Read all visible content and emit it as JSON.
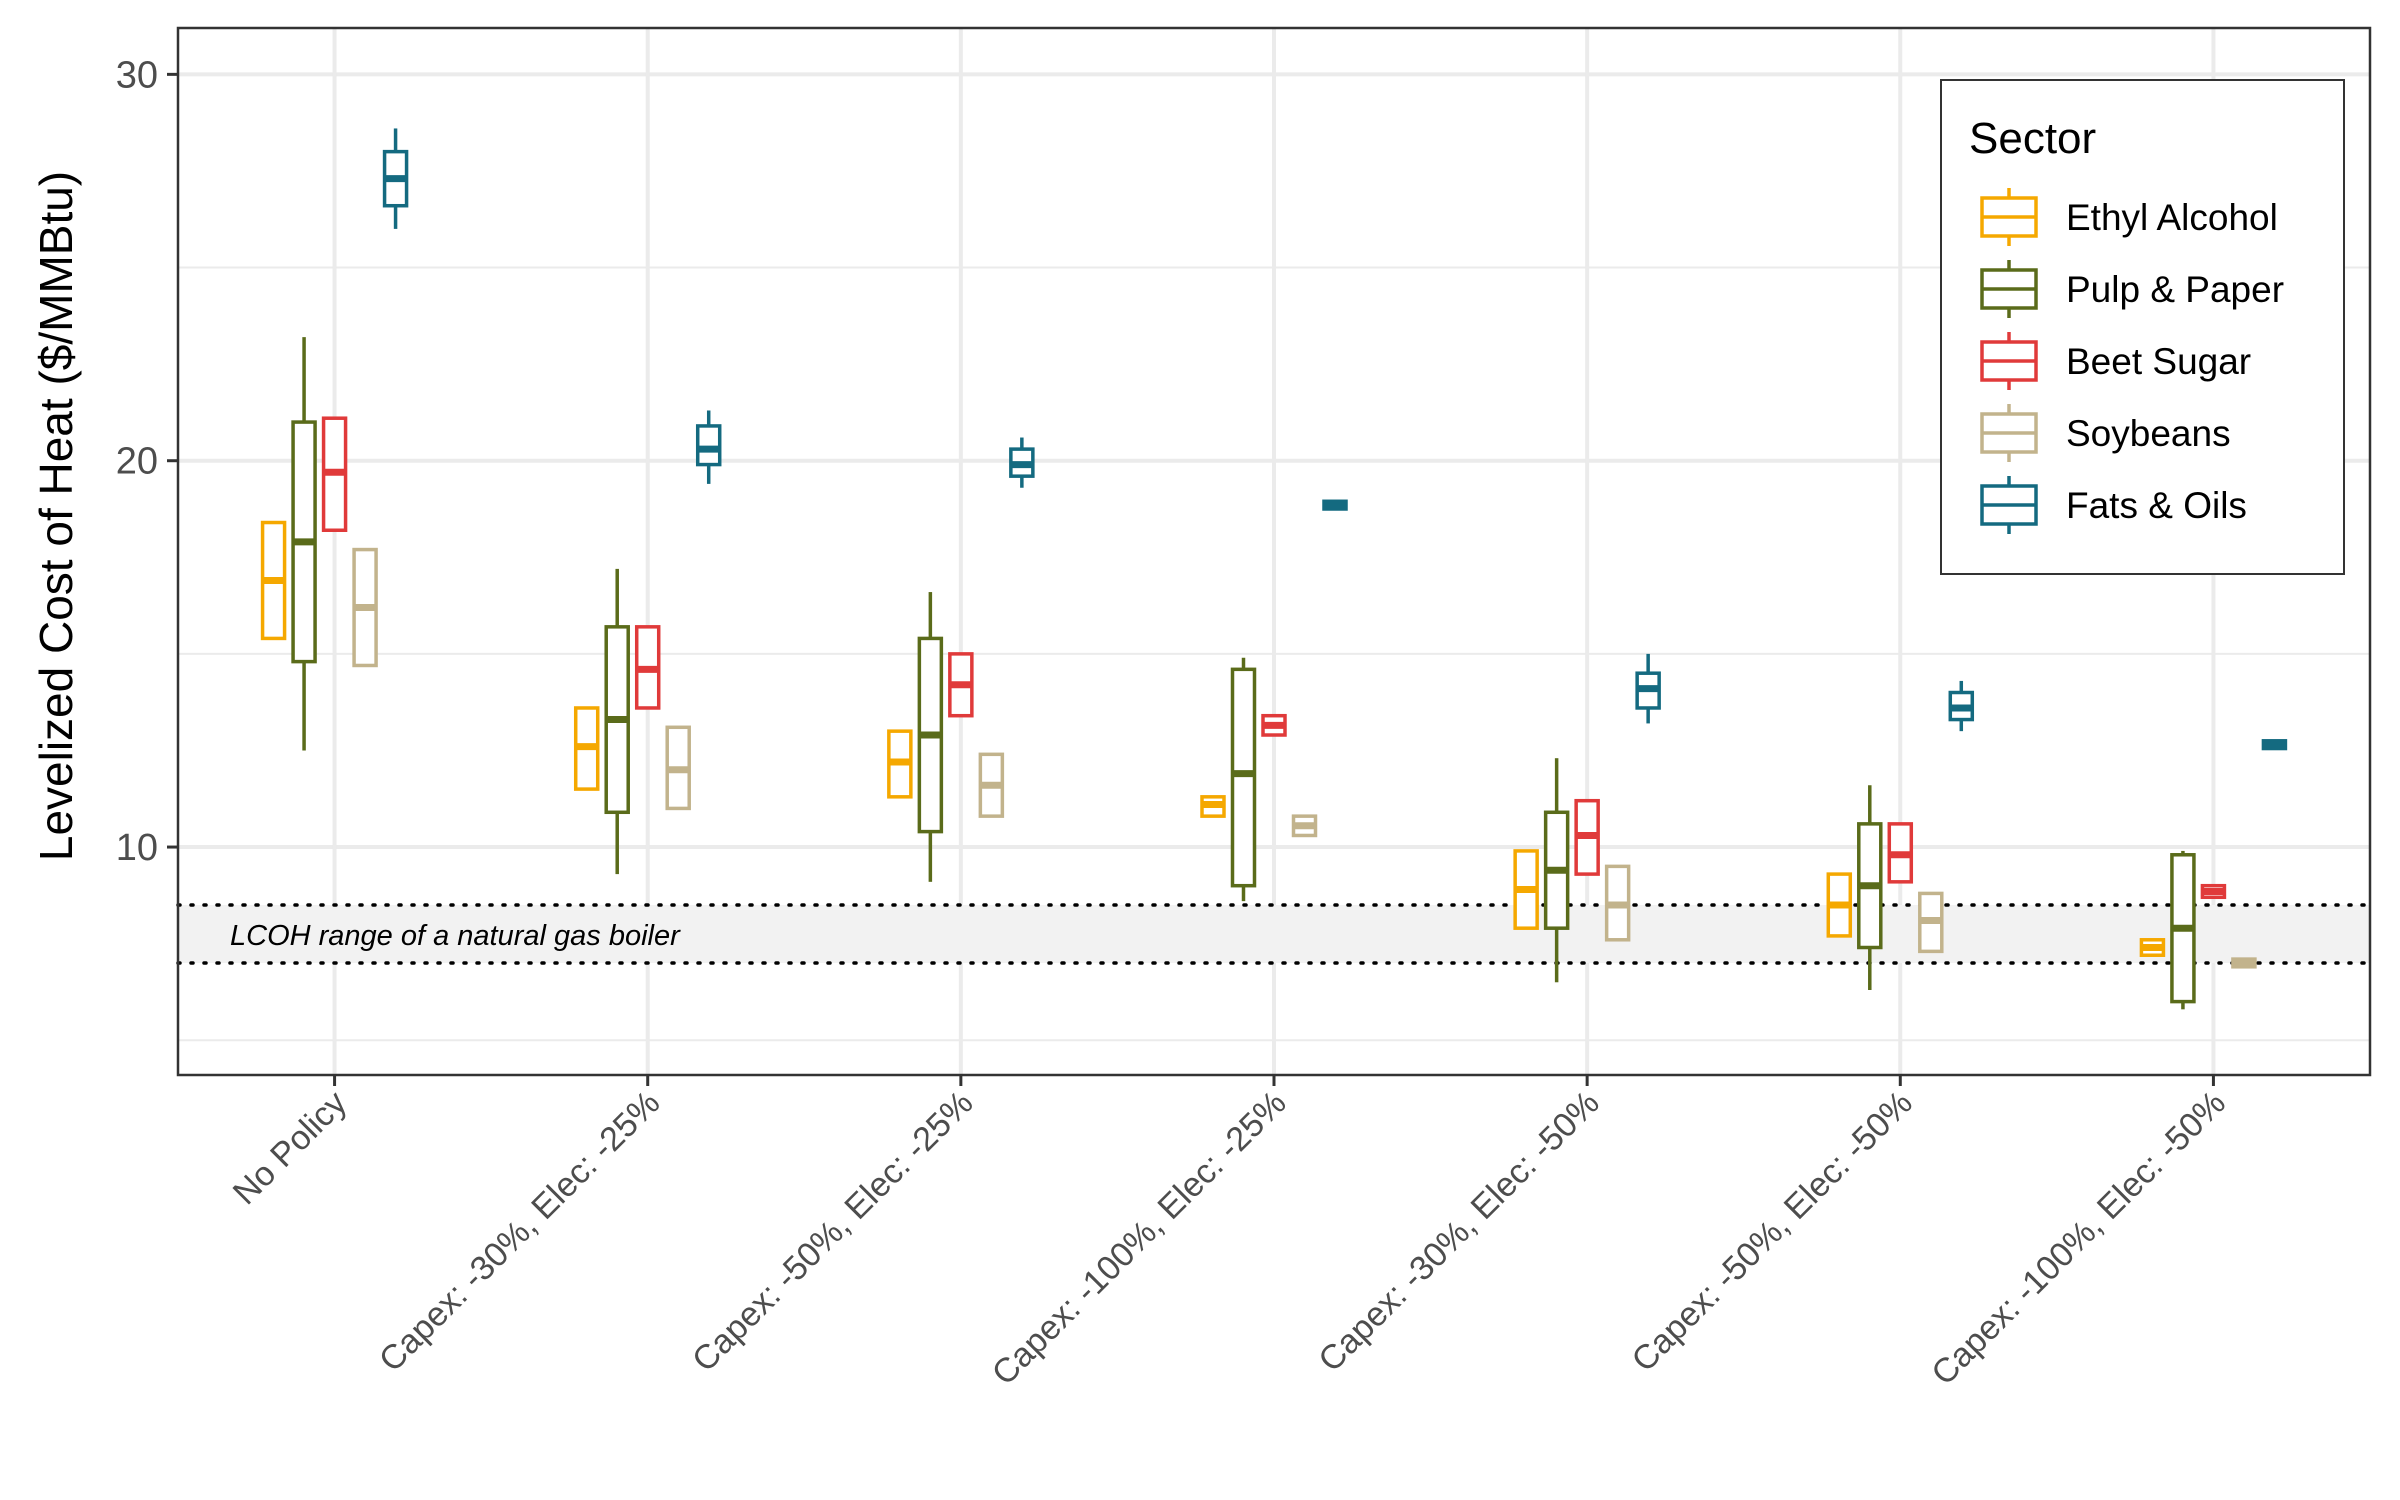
{
  "chart_data": {
    "type": "boxplot",
    "title": "",
    "xlabel": "",
    "ylabel": "Levelized Cost of Heat ($/MMBtu)",
    "ylim": [
      4.1,
      31.2
    ],
    "yticks": [
      10,
      20,
      30
    ],
    "grid": true,
    "legend_position": "top-right",
    "legend_title": "Sector",
    "categories": [
      "No Policy",
      "Capex: -30%, Elec: -25%",
      "Capex: -50%, Elec: -25%",
      "Capex: -100%, Elec: -25%",
      "Capex: -30%, Elec: -50%",
      "Capex: -50%, Elec: -50%",
      "Capex: -100%, Elec: -50%"
    ],
    "reference_band": {
      "label": "LCOH range of a natural gas boiler",
      "low": 7.0,
      "high": 8.5
    },
    "series": [
      {
        "name": "Ethyl Alcohol",
        "color": "#F5A800",
        "boxes": [
          {
            "min": 15.4,
            "q1": 15.4,
            "median": 16.9,
            "q3": 18.4,
            "max": 18.4
          },
          {
            "min": 11.5,
            "q1": 11.5,
            "median": 12.6,
            "q3": 13.6,
            "max": 13.6
          },
          {
            "min": 11.3,
            "q1": 11.3,
            "median": 12.2,
            "q3": 13.0,
            "max": 13.0
          },
          {
            "min": 10.8,
            "q1": 10.8,
            "median": 11.1,
            "q3": 11.3,
            "max": 11.3
          },
          {
            "min": 7.9,
            "q1": 7.9,
            "median": 8.9,
            "q3": 9.9,
            "max": 9.9
          },
          {
            "min": 7.7,
            "q1": 7.7,
            "median": 8.5,
            "q3": 9.3,
            "max": 9.3
          },
          {
            "min": 7.2,
            "q1": 7.2,
            "median": 7.4,
            "q3": 7.6,
            "max": 7.6
          }
        ]
      },
      {
        "name": "Pulp & Paper",
        "color": "#5A6B1A",
        "boxes": [
          {
            "min": 12.5,
            "q1": 14.8,
            "median": 17.9,
            "q3": 21.0,
            "max": 23.2
          },
          {
            "min": 9.3,
            "q1": 10.9,
            "median": 13.3,
            "q3": 15.7,
            "max": 17.2
          },
          {
            "min": 9.1,
            "q1": 10.4,
            "median": 12.9,
            "q3": 15.4,
            "max": 16.6
          },
          {
            "min": 8.6,
            "q1": 9.0,
            "median": 11.9,
            "q3": 14.6,
            "max": 14.9
          },
          {
            "min": 6.5,
            "q1": 7.9,
            "median": 9.4,
            "q3": 10.9,
            "max": 12.3
          },
          {
            "min": 6.3,
            "q1": 7.4,
            "median": 9.0,
            "q3": 10.6,
            "max": 11.6
          },
          {
            "min": 5.8,
            "q1": 6.0,
            "median": 7.9,
            "q3": 9.8,
            "max": 9.9
          }
        ]
      },
      {
        "name": "Beet Sugar",
        "color": "#E03A3A",
        "boxes": [
          {
            "min": 18.2,
            "q1": 18.2,
            "median": 19.7,
            "q3": 21.1,
            "max": 21.1
          },
          {
            "min": 13.6,
            "q1": 13.6,
            "median": 14.6,
            "q3": 15.7,
            "max": 15.7
          },
          {
            "min": 13.4,
            "q1": 13.4,
            "median": 14.2,
            "q3": 15.0,
            "max": 15.0
          },
          {
            "min": 12.9,
            "q1": 12.9,
            "median": 13.15,
            "q3": 13.4,
            "max": 13.4
          },
          {
            "min": 9.3,
            "q1": 9.3,
            "median": 10.3,
            "q3": 11.2,
            "max": 11.2
          },
          {
            "min": 9.1,
            "q1": 9.1,
            "median": 9.8,
            "q3": 10.6,
            "max": 10.6
          },
          {
            "min": 8.7,
            "q1": 8.7,
            "median": 8.85,
            "q3": 9.0,
            "max": 9.0
          }
        ]
      },
      {
        "name": "Soybeans",
        "color": "#C2B38C",
        "boxes": [
          {
            "min": 14.7,
            "q1": 14.7,
            "median": 16.2,
            "q3": 17.7,
            "max": 17.7
          },
          {
            "min": 11.0,
            "q1": 11.0,
            "median": 12.0,
            "q3": 13.1,
            "max": 13.1
          },
          {
            "min": 10.8,
            "q1": 10.8,
            "median": 11.6,
            "q3": 12.4,
            "max": 12.4
          },
          {
            "min": 10.3,
            "q1": 10.3,
            "median": 10.55,
            "q3": 10.8,
            "max": 10.8
          },
          {
            "min": 7.6,
            "q1": 7.6,
            "median": 8.5,
            "q3": 9.5,
            "max": 9.5
          },
          {
            "min": 7.3,
            "q1": 7.3,
            "median": 8.1,
            "q3": 8.8,
            "max": 8.8
          },
          {
            "min": 6.9,
            "q1": 6.9,
            "median": 7.0,
            "q3": 7.1,
            "max": 7.1
          }
        ]
      },
      {
        "name": "Fats & Oils",
        "color": "#146A80",
        "boxes": [
          {
            "min": 26.0,
            "q1": 26.6,
            "median": 27.3,
            "q3": 28.0,
            "max": 28.6
          },
          {
            "min": 19.4,
            "q1": 19.9,
            "median": 20.3,
            "q3": 20.9,
            "max": 21.3
          },
          {
            "min": 19.3,
            "q1": 19.6,
            "median": 19.9,
            "q3": 20.3,
            "max": 20.6
          },
          {
            "min": 18.75,
            "q1": 18.75,
            "median": 18.85,
            "q3": 18.95,
            "max": 18.95
          },
          {
            "min": 13.2,
            "q1": 13.6,
            "median": 14.1,
            "q3": 14.5,
            "max": 15.0
          },
          {
            "min": 13.0,
            "q1": 13.3,
            "median": 13.6,
            "q3": 14.0,
            "max": 14.3
          },
          {
            "min": 12.55,
            "q1": 12.55,
            "median": 12.65,
            "q3": 12.75,
            "max": 12.75
          }
        ]
      }
    ]
  }
}
